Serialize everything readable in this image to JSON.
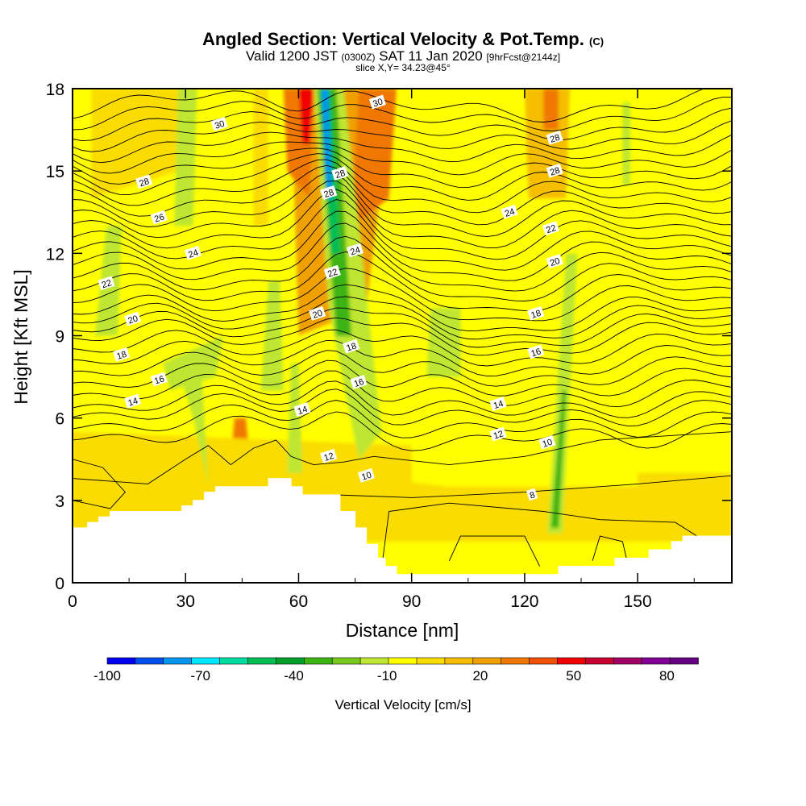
{
  "header": {
    "title_main": "Angled Section: Vertical Velocity & Pot.Temp.",
    "title_badge": "(C)",
    "valid_prefix": "Valid 1200 JST",
    "valid_utc": "(0300Z)",
    "valid_date": "SAT 11 Jan 2020",
    "forecast": "[9hrFcst@2144z]",
    "slice": "slice X,Y= 34.23@45°"
  },
  "chart_data": {
    "type": "heatmap",
    "xlabel": "Distance [nm]",
    "ylabel": "Height [Kft MSL]",
    "xlim": [
      0,
      175
    ],
    "ylim": [
      0,
      18
    ],
    "x_ticks": [
      0,
      30,
      60,
      90,
      120,
      150
    ],
    "y_ticks": [
      0,
      3,
      6,
      9,
      12,
      15,
      18
    ],
    "colorbar": {
      "label": "Vertical Velocity [cm/s]",
      "tick_labels": [
        "-100",
        "-70",
        "-40",
        "-10",
        "20",
        "50",
        "80"
      ],
      "tick_values": [
        -100,
        -70,
        -40,
        -10,
        20,
        50,
        80
      ],
      "range": [
        -100,
        90
      ],
      "colors": [
        "#0000ee",
        "#0050f0",
        "#0096f0",
        "#00e6ff",
        "#00dca0",
        "#00be55",
        "#00a028",
        "#3cb414",
        "#78c81e",
        "#bee632",
        "#ffff00",
        "#fadc00",
        "#f5be00",
        "#f0a000",
        "#f07800",
        "#f05000",
        "#f00000",
        "#c80032",
        "#a00064",
        "#820096",
        "#640082"
      ]
    },
    "terrain_profile": [
      [
        0,
        2.0
      ],
      [
        4,
        2.0
      ],
      [
        4,
        2.2
      ],
      [
        7,
        2.2
      ],
      [
        7,
        2.4
      ],
      [
        10,
        2.4
      ],
      [
        10,
        2.6
      ],
      [
        29,
        2.6
      ],
      [
        29,
        2.8
      ],
      [
        32,
        2.8
      ],
      [
        32,
        3.0
      ],
      [
        35,
        3.0
      ],
      [
        35,
        3.3
      ],
      [
        38,
        3.3
      ],
      [
        38,
        3.5
      ],
      [
        52,
        3.5
      ],
      [
        52,
        3.8
      ],
      [
        58,
        3.8
      ],
      [
        58,
        3.5
      ],
      [
        61,
        3.5
      ],
      [
        61,
        3.2
      ],
      [
        71,
        3.2
      ],
      [
        71,
        2.6
      ],
      [
        75,
        2.6
      ],
      [
        75,
        2.0
      ],
      [
        78,
        2.0
      ],
      [
        78,
        1.4
      ],
      [
        81,
        1.4
      ],
      [
        81,
        0.9
      ],
      [
        83,
        0.9
      ],
      [
        83,
        0.6
      ],
      [
        86,
        0.6
      ],
      [
        86,
        0.3
      ],
      [
        129,
        0.3
      ],
      [
        129,
        0.6
      ],
      [
        144,
        0.6
      ],
      [
        144,
        0.9
      ],
      [
        153,
        0.9
      ],
      [
        153,
        1.2
      ],
      [
        159,
        1.2
      ],
      [
        159,
        1.5
      ],
      [
        162,
        1.5
      ],
      [
        162,
        1.7
      ],
      [
        175,
        1.7
      ],
      [
        175,
        0
      ],
      [
        0,
        0
      ]
    ],
    "theta_contour_labels": [
      {
        "text": "30",
        "x": 39,
        "y": 16.7
      },
      {
        "text": "30",
        "x": 81,
        "y": 17.5
      },
      {
        "text": "28",
        "x": 19,
        "y": 14.6
      },
      {
        "text": "28",
        "x": 71,
        "y": 14.9
      },
      {
        "text": "28",
        "x": 68,
        "y": 14.2
      },
      {
        "text": "28",
        "x": 128,
        "y": 16.2
      },
      {
        "text": "28",
        "x": 128,
        "y": 15.0
      },
      {
        "text": "26",
        "x": 23,
        "y": 13.3
      },
      {
        "text": "24",
        "x": 32,
        "y": 12.0
      },
      {
        "text": "24",
        "x": 75,
        "y": 12.1
      },
      {
        "text": "24",
        "x": 116,
        "y": 13.5
      },
      {
        "text": "22",
        "x": 9,
        "y": 10.9
      },
      {
        "text": "22",
        "x": 69,
        "y": 11.3
      },
      {
        "text": "22",
        "x": 127,
        "y": 12.9
      },
      {
        "text": "20",
        "x": 16,
        "y": 9.6
      },
      {
        "text": "20",
        "x": 65,
        "y": 9.8
      },
      {
        "text": "20",
        "x": 128,
        "y": 11.7
      },
      {
        "text": "18",
        "x": 13,
        "y": 8.3
      },
      {
        "text": "18",
        "x": 74,
        "y": 8.6
      },
      {
        "text": "18",
        "x": 123,
        "y": 9.8
      },
      {
        "text": "16",
        "x": 23,
        "y": 7.4
      },
      {
        "text": "16",
        "x": 76,
        "y": 7.3
      },
      {
        "text": "16",
        "x": 123,
        "y": 8.4
      },
      {
        "text": "14",
        "x": 16,
        "y": 6.6
      },
      {
        "text": "14",
        "x": 61,
        "y": 6.3
      },
      {
        "text": "14",
        "x": 113,
        "y": 6.5
      },
      {
        "text": "12",
        "x": 68,
        "y": 4.6
      },
      {
        "text": "12",
        "x": 113,
        "y": 5.4
      },
      {
        "text": "10",
        "x": 78,
        "y": 3.9
      },
      {
        "text": "10",
        "x": 126,
        "y": 5.1
      },
      {
        "text": "8",
        "x": 122,
        "y": 3.2
      }
    ]
  }
}
